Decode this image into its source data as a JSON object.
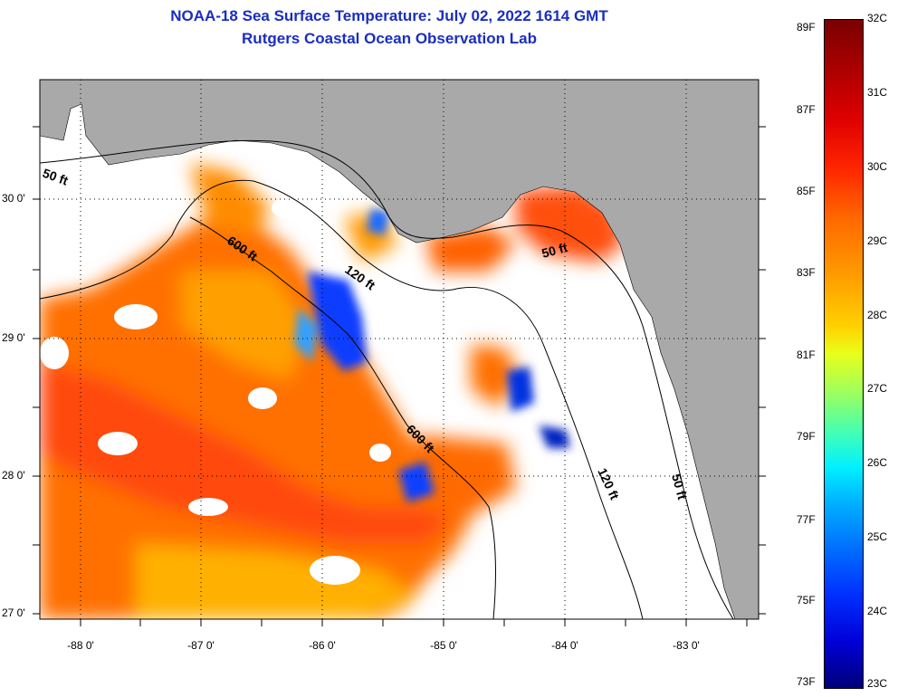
{
  "header": {
    "title_line1": "NOAA-18 Sea Surface Temperature:  July 02, 2022 1614 GMT",
    "title_line2": "Rutgers Coastal Ocean Observation Lab"
  },
  "map": {
    "lat_ticks": [
      "30 0'",
      "29 0'",
      "28 0'",
      "27 0'"
    ],
    "lon_ticks": [
      "-88 0'",
      "-87 0'",
      "-86 0'",
      "-85 0'",
      "-84 0'",
      "-83 0'"
    ],
    "contour_labels": [
      "50 ft",
      "600 ft",
      "120 ft",
      "50 ft",
      "600 ft",
      "120 ft",
      "50 ft"
    ],
    "colors": {
      "land": "#a9a9a9",
      "water": "#ffffff",
      "contour": "#000000"
    }
  },
  "colorbar": {
    "fahrenheit": [
      "89F",
      "87F",
      "85F",
      "83F",
      "81F",
      "79F",
      "77F",
      "75F",
      "73F"
    ],
    "celsius": [
      "32C",
      "31C",
      "30C",
      "29C",
      "28C",
      "27C",
      "26C",
      "25C",
      "24C",
      "23C"
    ]
  }
}
